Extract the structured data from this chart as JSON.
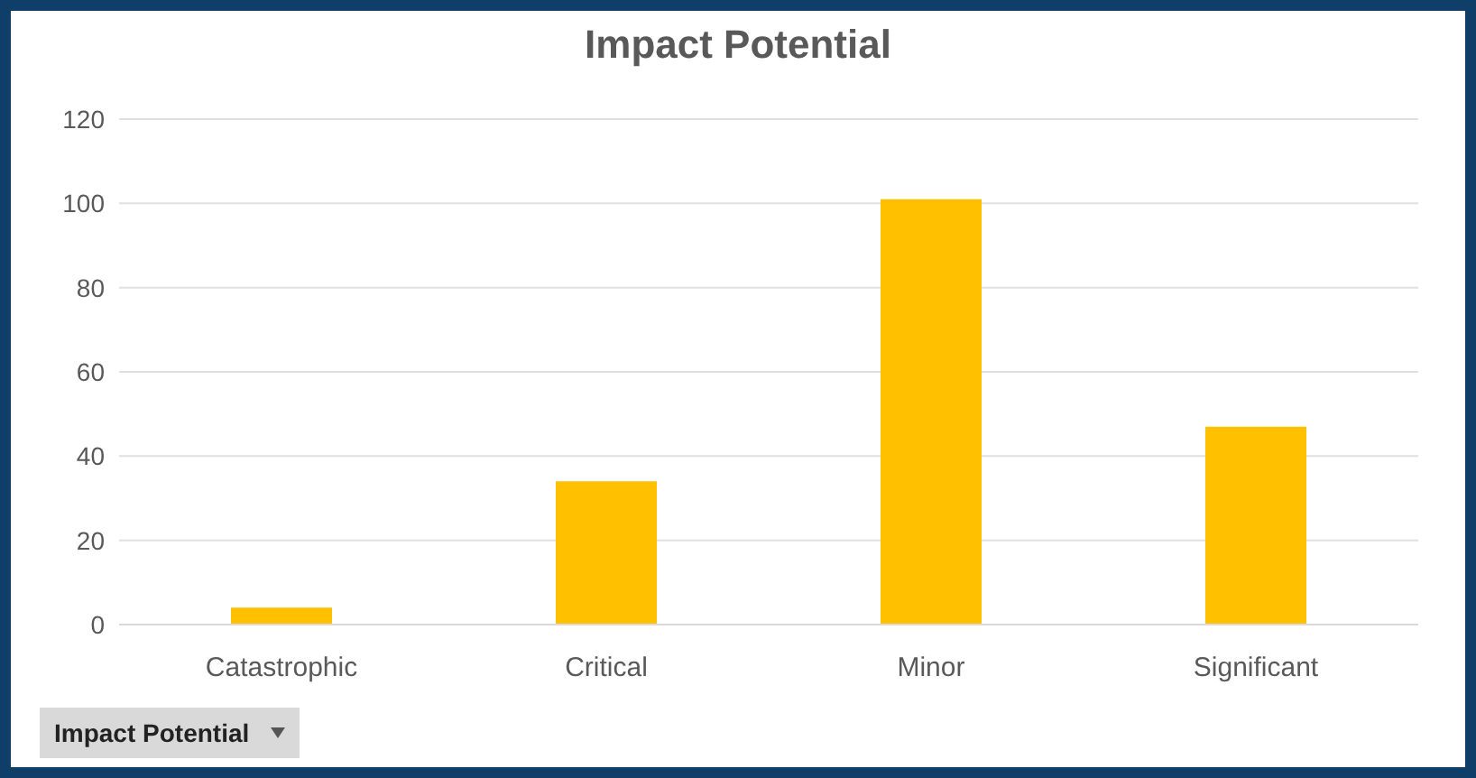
{
  "chart_data": {
    "type": "bar",
    "title": "Impact Potential",
    "categories": [
      "Catastrophic",
      "Critical",
      "Minor",
      "Significant"
    ],
    "values": [
      4,
      34,
      101,
      47
    ],
    "color": "#ffc000",
    "ylim": [
      0,
      120
    ],
    "yticks": [
      0,
      20,
      40,
      60,
      80,
      100,
      120
    ],
    "grid": "y",
    "annotations": [
      "Impact Potential"
    ]
  }
}
